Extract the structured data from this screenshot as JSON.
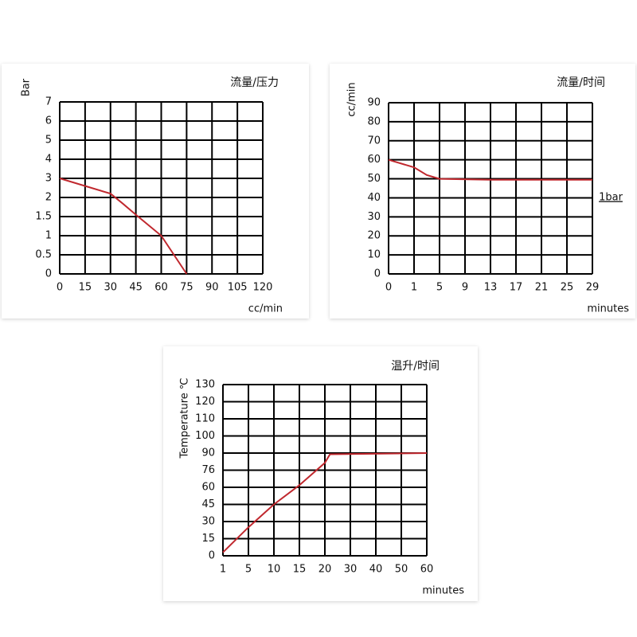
{
  "chart_data": [
    {
      "type": "line",
      "title": "流量/压力",
      "x_label": "cc/min",
      "y_label": "Bar",
      "x": [
        0,
        30,
        37,
        45,
        60,
        75
      ],
      "values": [
        3,
        2.2,
        1.85,
        1.55,
        1,
        0
      ],
      "color": "#c0282e",
      "xlim": [
        0,
        120
      ],
      "xticks": [
        0,
        15,
        30,
        45,
        60,
        75,
        90,
        105,
        120
      ],
      "ylim": [
        0,
        7
      ],
      "yticks": [
        0,
        0.5,
        1,
        1.5,
        2,
        3,
        4,
        5,
        6,
        7
      ],
      "grid": true
    },
    {
      "type": "line",
      "title": "流量/时间",
      "x_label": "minutes",
      "y_label": "cc/min",
      "annotation": "1bar",
      "x": [
        0,
        1,
        3,
        5,
        13,
        29
      ],
      "values": [
        60,
        56,
        52,
        50,
        49.5,
        49.5
      ],
      "color": "#c0282e",
      "xlim": [
        0,
        29
      ],
      "xticks": [
        0,
        1,
        5,
        9,
        13,
        17,
        21,
        25,
        29
      ],
      "ylim": [
        0,
        90
      ],
      "yticks": [
        0,
        10,
        20,
        30,
        40,
        50,
        60,
        70,
        80,
        90
      ],
      "grid": true
    },
    {
      "type": "line",
      "title": "温升/时间",
      "x_label": "minutes",
      "y_label": "Temperature ℃",
      "x": [
        1,
        3,
        5,
        10,
        15,
        20,
        22,
        60
      ],
      "values": [
        3,
        14,
        25,
        45,
        62,
        82,
        89,
        90
      ],
      "color": "#c0282e",
      "xlim": [
        1,
        60
      ],
      "xticks": [
        1,
        5,
        10,
        15,
        20,
        30,
        40,
        50,
        60
      ],
      "ylim": [
        0,
        130
      ],
      "yticks": [
        0,
        15,
        30,
        45,
        60,
        76,
        90,
        100,
        110,
        120,
        130
      ],
      "grid": true
    }
  ]
}
